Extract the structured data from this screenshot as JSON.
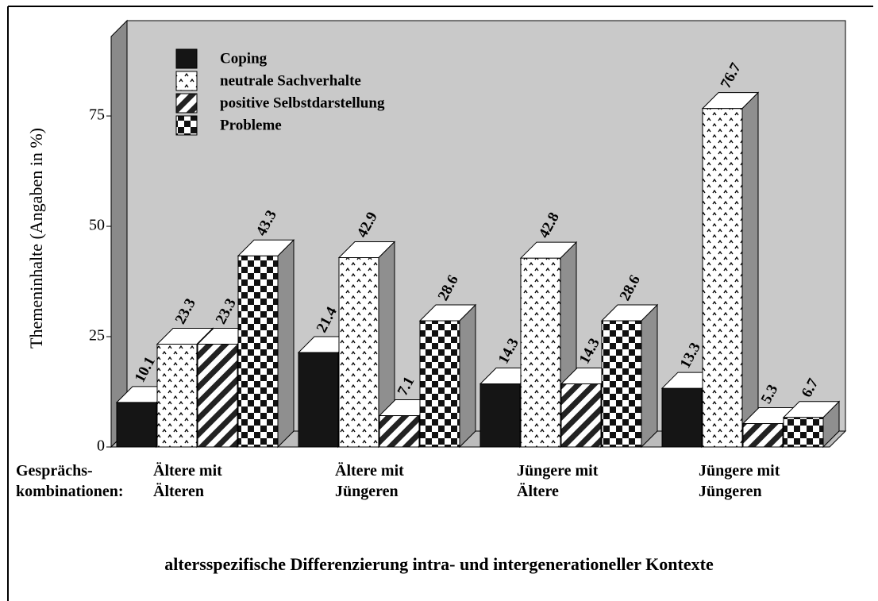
{
  "chart_data": {
    "type": "bar3d",
    "y_label": "Themeninhalte (Angaben in %)",
    "x_label": "Gesprächs- kombinationen:",
    "title": "altersspezifische Differenzierung intra- und intergenerationeller Kontexte",
    "categories": [
      "Ältere mit Älteren",
      "Ältere mit Jüngeren",
      "Jüngere mit Ältere",
      "Jüngere mit Jüngeren"
    ],
    "series": [
      {
        "name": "Coping",
        "color": "#151515",
        "values": [
          10.1,
          21.4,
          14.3,
          13.3
        ]
      },
      {
        "name": "neutrale Sachverhalte",
        "color": "#ffffff",
        "values": [
          23.3,
          42.9,
          42.8,
          76.7
        ]
      },
      {
        "name": "positive Selbstdarstellung",
        "color": "#222222",
        "values": [
          23.3,
          7.1,
          14.3,
          5.3
        ]
      },
      {
        "name": "Probleme",
        "color": "#111111",
        "values": [
          43.3,
          28.6,
          28.6,
          6.7
        ]
      }
    ],
    "ylim": [
      0,
      93
    ],
    "yticks": [
      0,
      25,
      50,
      75
    ],
    "legend": "top-left"
  }
}
